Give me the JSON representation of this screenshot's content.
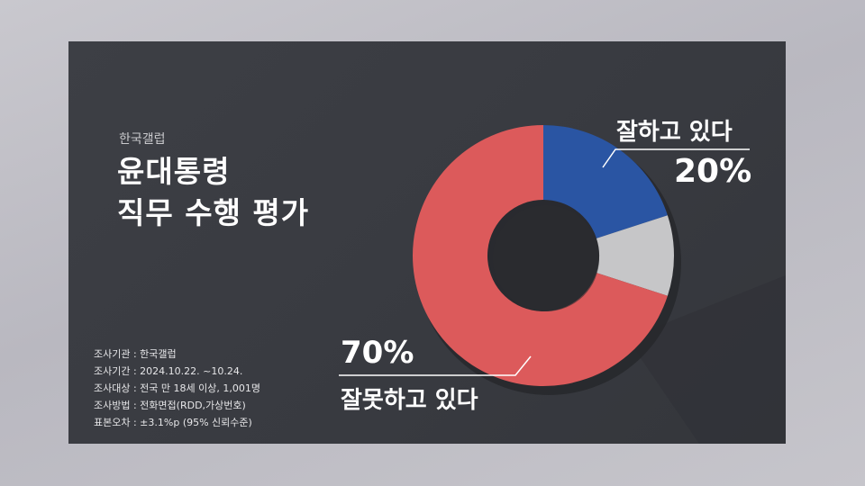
{
  "header": {
    "source": "한국갤럽",
    "title_line1": "윤대통령",
    "title_line2": "직무 수행 평가"
  },
  "survey_info": [
    "조사기관 : 한국갤럽",
    "조사기간 : 2024.10.22. ~10.24.",
    "조사대상 : 전국 만 18세 이상, 1,001명",
    "조사방법 : 전화면접(RDD,가상번호)",
    "표본오차 :  ±3.1%p (95% 신뢰수준)"
  ],
  "chart_data": {
    "type": "pie",
    "donut": true,
    "slices": [
      {
        "label": "잘하고 있다",
        "value": 20,
        "value_label": "20%",
        "color": "#2a55a3"
      },
      {
        "label": "",
        "value": 10,
        "value_label": "",
        "color": "#c6c6c8"
      },
      {
        "label": "잘못하고 있다",
        "value": 70,
        "value_label": "70%",
        "color": "#dc5a5b"
      }
    ]
  }
}
